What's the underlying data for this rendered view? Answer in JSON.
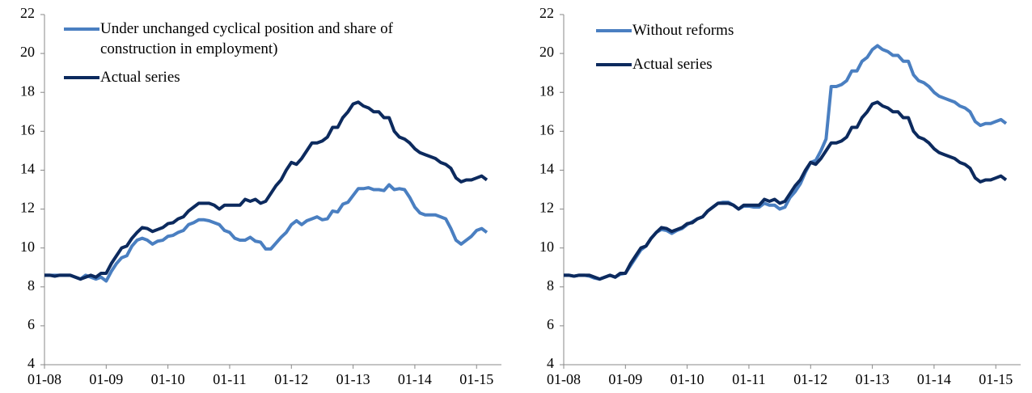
{
  "chart_data": [
    {
      "type": "line",
      "categories": [
        "01-08",
        null,
        null,
        null,
        null,
        null,
        null,
        null,
        null,
        null,
        null,
        null,
        "01-09",
        null,
        null,
        null,
        null,
        null,
        null,
        null,
        null,
        null,
        null,
        null,
        "01-10",
        null,
        null,
        null,
        null,
        null,
        null,
        null,
        null,
        null,
        null,
        null,
        "01-11",
        null,
        null,
        null,
        null,
        null,
        null,
        null,
        null,
        null,
        null,
        null,
        "01-12",
        null,
        null,
        null,
        null,
        null,
        null,
        null,
        null,
        null,
        null,
        null,
        "01-13",
        null,
        null,
        null,
        null,
        null,
        null,
        null,
        null,
        null,
        null,
        null,
        "01-14",
        null,
        null,
        null,
        null,
        null,
        null,
        null,
        null,
        null,
        null,
        null,
        "01-15",
        null,
        null
      ],
      "series": [
        {
          "name": "Under unchanged cyclical position and share of construction in employment)",
          "color": "#4a7fc1",
          "values": [
            8.6,
            8.6,
            8.6,
            8.6,
            8.6,
            8.6,
            8.5,
            8.4,
            8.6,
            8.5,
            8.4,
            8.5,
            8.3,
            8.8,
            9.2,
            9.5,
            9.6,
            10.1,
            10.4,
            10.5,
            10.4,
            10.2,
            10.35,
            10.4,
            10.6,
            10.65,
            10.8,
            10.9,
            11.2,
            11.3,
            11.45,
            11.45,
            11.4,
            11.3,
            11.2,
            10.9,
            10.8,
            10.5,
            10.4,
            10.4,
            10.55,
            10.35,
            10.3,
            9.95,
            9.95,
            10.25,
            10.55,
            10.8,
            11.2,
            11.4,
            11.2,
            11.4,
            11.5,
            11.6,
            11.45,
            11.5,
            11.9,
            11.85,
            12.25,
            12.35,
            12.7,
            13.05,
            13.05,
            13.1,
            13.0,
            13.0,
            12.95,
            13.25,
            13.0,
            13.05,
            13.0,
            12.6,
            12.1,
            11.8,
            11.7,
            11.7,
            11.7,
            11.6,
            11.5,
            11.0,
            10.4,
            10.2,
            10.4,
            10.6,
            10.9,
            11.0,
            10.8
          ]
        },
        {
          "name": "Actual series",
          "color": "#0c2a5e",
          "values": [
            8.6,
            8.6,
            8.55,
            8.6,
            8.6,
            8.6,
            8.5,
            8.4,
            8.5,
            8.6,
            8.5,
            8.7,
            8.7,
            9.2,
            9.6,
            10.0,
            10.1,
            10.5,
            10.8,
            11.05,
            11.0,
            10.85,
            10.95,
            11.05,
            11.25,
            11.3,
            11.5,
            11.6,
            11.9,
            12.1,
            12.3,
            12.3,
            12.3,
            12.2,
            12.0,
            12.2,
            12.2,
            12.2,
            12.2,
            12.5,
            12.4,
            12.5,
            12.3,
            12.4,
            12.8,
            13.2,
            13.5,
            14.0,
            14.4,
            14.3,
            14.6,
            15.0,
            15.4,
            15.4,
            15.5,
            15.7,
            16.2,
            16.2,
            16.7,
            17.0,
            17.4,
            17.5,
            17.3,
            17.2,
            17.0,
            17.0,
            16.7,
            16.7,
            16.0,
            15.7,
            15.6,
            15.4,
            15.1,
            14.9,
            14.8,
            14.7,
            14.6,
            14.4,
            14.3,
            14.1,
            13.6,
            13.4,
            13.5,
            13.5,
            13.6,
            13.7,
            13.5
          ]
        }
      ],
      "ylim": [
        4,
        22
      ],
      "yticks": [
        4,
        6,
        8,
        10,
        12,
        14,
        16,
        18,
        20,
        22
      ],
      "legend": "top-left"
    },
    {
      "type": "line",
      "categories": [
        "01-08",
        null,
        null,
        null,
        null,
        null,
        null,
        null,
        null,
        null,
        null,
        null,
        "01-09",
        null,
        null,
        null,
        null,
        null,
        null,
        null,
        null,
        null,
        null,
        null,
        "01-10",
        null,
        null,
        null,
        null,
        null,
        null,
        null,
        null,
        null,
        null,
        null,
        "01-11",
        null,
        null,
        null,
        null,
        null,
        null,
        null,
        null,
        null,
        null,
        null,
        "01-12",
        null,
        null,
        null,
        null,
        null,
        null,
        null,
        null,
        null,
        null,
        null,
        "01-13",
        null,
        null,
        null,
        null,
        null,
        null,
        null,
        null,
        null,
        null,
        null,
        "01-14",
        null,
        null,
        null,
        null,
        null,
        null,
        null,
        null,
        null,
        null,
        null,
        "01-15",
        null,
        null
      ],
      "series": [
        {
          "name": "Without reforms",
          "color": "#4a7fc1",
          "values": [
            8.6,
            8.6,
            8.55,
            8.6,
            8.6,
            8.55,
            8.45,
            8.4,
            8.5,
            8.6,
            8.5,
            8.65,
            8.7,
            9.1,
            9.5,
            9.9,
            10.1,
            10.5,
            10.8,
            10.95,
            10.9,
            10.75,
            10.9,
            11.0,
            11.2,
            11.35,
            11.5,
            11.6,
            11.9,
            12.1,
            12.3,
            12.35,
            12.35,
            12.2,
            12.0,
            12.15,
            12.15,
            12.1,
            12.1,
            12.3,
            12.2,
            12.2,
            12.0,
            12.1,
            12.6,
            12.9,
            13.3,
            13.9,
            14.4,
            14.5,
            15.0,
            15.6,
            18.3,
            18.3,
            18.4,
            18.6,
            19.1,
            19.1,
            19.6,
            19.8,
            20.2,
            20.4,
            20.2,
            20.1,
            19.9,
            19.9,
            19.6,
            19.6,
            18.9,
            18.6,
            18.5,
            18.3,
            18.0,
            17.8,
            17.7,
            17.6,
            17.5,
            17.3,
            17.2,
            17.0,
            16.5,
            16.3,
            16.4,
            16.4,
            16.5,
            16.6,
            16.4
          ]
        },
        {
          "name": "Actual series",
          "color": "#0c2a5e",
          "values": [
            8.6,
            8.6,
            8.55,
            8.6,
            8.6,
            8.6,
            8.5,
            8.4,
            8.5,
            8.6,
            8.5,
            8.7,
            8.7,
            9.2,
            9.6,
            10.0,
            10.1,
            10.5,
            10.8,
            11.05,
            11.0,
            10.85,
            10.95,
            11.05,
            11.25,
            11.3,
            11.5,
            11.6,
            11.9,
            12.1,
            12.3,
            12.3,
            12.3,
            12.2,
            12.0,
            12.2,
            12.2,
            12.2,
            12.2,
            12.5,
            12.4,
            12.5,
            12.3,
            12.4,
            12.8,
            13.2,
            13.5,
            14.0,
            14.4,
            14.3,
            14.6,
            15.0,
            15.4,
            15.4,
            15.5,
            15.7,
            16.2,
            16.2,
            16.7,
            17.0,
            17.4,
            17.5,
            17.3,
            17.2,
            17.0,
            17.0,
            16.7,
            16.7,
            16.0,
            15.7,
            15.6,
            15.4,
            15.1,
            14.9,
            14.8,
            14.7,
            14.6,
            14.4,
            14.3,
            14.1,
            13.6,
            13.4,
            13.5,
            13.5,
            13.6,
            13.7,
            13.5
          ]
        }
      ],
      "ylim": [
        4,
        22
      ],
      "yticks": [
        4,
        6,
        8,
        10,
        12,
        14,
        16,
        18,
        20,
        22
      ],
      "legend": "top-left"
    }
  ]
}
